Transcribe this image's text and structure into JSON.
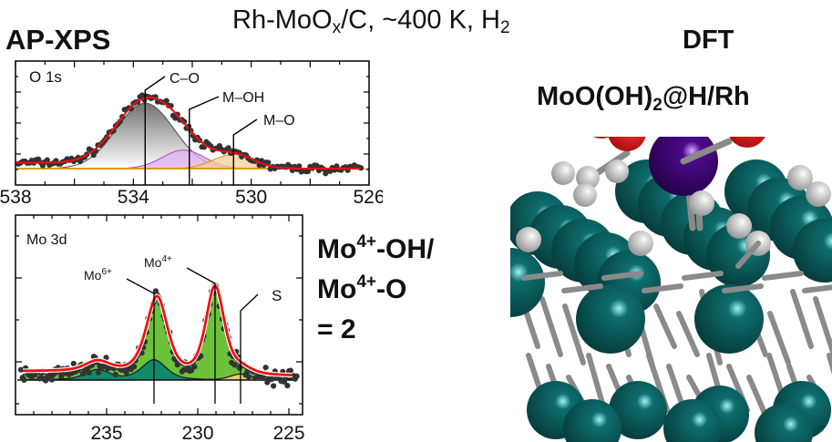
{
  "header": {
    "title_prefix": "Rh-MoO",
    "title_sub": "x",
    "title_suffix": "/C, ~400 K, H",
    "title_sub2": "2",
    "left_label": "AP-XPS",
    "right_label": "DFT"
  },
  "dft": {
    "formula_prefix": "MoO(OH)",
    "formula_sub": "2",
    "formula_suffix": "@H/Rh",
    "colors": {
      "Rh": "#0e6e6e",
      "Mo": "#4b0a8c",
      "O": "#ee2a2a",
      "H": "#e4e4e4",
      "bond": "#8a8a8a"
    }
  },
  "ratio_text": {
    "line1_prefix": "Mo",
    "line1_sup": "4+",
    "line1_suffix": "-OH/",
    "line2_prefix": "Mo",
    "line2_sup": "4+",
    "line2_suffix": "-O",
    "line3": "= 2"
  },
  "chart_data": [
    {
      "type": "line",
      "title": "O 1s",
      "xlabel": "",
      "ylabel": "",
      "xlim": [
        538,
        526
      ],
      "x_ticks": [
        538,
        534,
        530,
        526
      ],
      "grid": false,
      "legend": null,
      "annotations": [
        {
          "label": "C–O",
          "x": 533.6
        },
        {
          "label": "M–OH",
          "x": 532.1
        },
        {
          "label": "M–O",
          "x": 530.6
        }
      ],
      "series": [
        {
          "name": "C–O component",
          "center": 533.6,
          "fwhm": 2.3,
          "height": 0.78,
          "color": "#555555",
          "fill": "gray-gradient"
        },
        {
          "name": "M–OH component",
          "center": 532.3,
          "fwhm": 1.7,
          "height": 0.22,
          "color": "#b04fd8",
          "fill": "#dcb0f0"
        },
        {
          "name": "M–O component",
          "center": 530.6,
          "fwhm": 1.6,
          "height": 0.17,
          "color": "#e09a10",
          "fill": "#f3cf9a"
        },
        {
          "name": "Envelope (fit)",
          "color": "#ee1111"
        },
        {
          "name": "Background",
          "color": "#e09a10"
        },
        {
          "name": "Data",
          "color": "#333333",
          "marker": "circle"
        }
      ]
    },
    {
      "type": "line",
      "title": "Mo 3d",
      "xlabel": "",
      "ylabel": "",
      "xlim": [
        240,
        224.2
      ],
      "x_ticks": [
        235,
        230,
        225
      ],
      "grid": false,
      "legend": null,
      "annotations": [
        {
          "label": "Mo6+",
          "label_base": "Mo",
          "label_sup": "6+",
          "x": 232.4
        },
        {
          "label": "Mo4+",
          "label_base": "Mo",
          "label_sup": "4+",
          "x": 229.05
        },
        {
          "label": "S",
          "x": 227.65
        }
      ],
      "series": [
        {
          "name": "Mo4+ 3d (green)",
          "peaks": [
            {
              "center": 229.05,
              "fwhm": 1.2,
              "height": 0.88
            },
            {
              "center": 232.2,
              "fwhm": 1.3,
              "height": 0.58
            }
          ],
          "color": "#222222",
          "fill": "#6cc23a"
        },
        {
          "name": "Mo6+ 3d (teal)",
          "peaks": [
            {
              "center": 232.4,
              "fwhm": 1.6,
              "height": 0.2
            },
            {
              "center": 235.5,
              "fwhm": 1.6,
              "height": 0.1
            }
          ],
          "color": "#222222",
          "fill": "#0f8a6c"
        },
        {
          "name": "S (yellow)",
          "peaks": [
            {
              "center": 227.65,
              "fwhm": 1.4,
              "height": 0.06
            }
          ],
          "color": "#222222",
          "fill": "#e6cf6a"
        },
        {
          "name": "Envelope (fit)",
          "color": "#ee1111"
        },
        {
          "name": "Data",
          "color": "#333333",
          "marker": "circle"
        }
      ]
    }
  ]
}
